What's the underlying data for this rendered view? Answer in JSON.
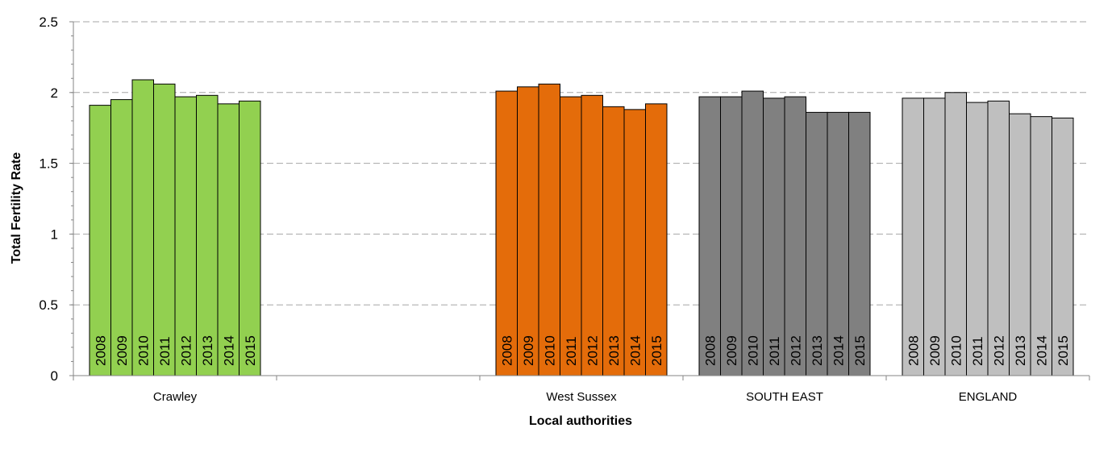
{
  "chart_data": {
    "type": "bar",
    "title": "",
    "xlabel": "Local authorities",
    "ylabel": "Total Fertility Rate",
    "ylim": [
      0,
      2.5
    ],
    "yticks": [
      "0",
      "0.5",
      "1",
      "1.5",
      "2",
      "2.5"
    ],
    "ytick_values": [
      0,
      0.5,
      1,
      1.5,
      2,
      2.5
    ],
    "grid": true,
    "legend": "none",
    "years": [
      "2008",
      "2009",
      "2010",
      "2011",
      "2012",
      "2013",
      "2014",
      "2015"
    ],
    "groups": [
      {
        "label": "Crawley",
        "color": "#92d050",
        "values": [
          1.91,
          1.95,
          2.09,
          2.06,
          1.97,
          1.98,
          1.92,
          1.94
        ]
      },
      {
        "label": "",
        "color": "#ffffff",
        "values": []
      },
      {
        "label": "West Sussex",
        "color": "#e46c0a",
        "values": [
          2.01,
          2.04,
          2.06,
          1.97,
          1.98,
          1.9,
          1.88,
          1.92
        ]
      },
      {
        "label": "SOUTH EAST",
        "color": "#808080",
        "values": [
          1.97,
          1.97,
          2.01,
          1.96,
          1.97,
          1.86,
          1.86,
          1.86
        ]
      },
      {
        "label": "ENGLAND",
        "color": "#bfbfbf",
        "values": [
          1.96,
          1.96,
          2.0,
          1.93,
          1.94,
          1.85,
          1.83,
          1.82
        ]
      }
    ]
  }
}
